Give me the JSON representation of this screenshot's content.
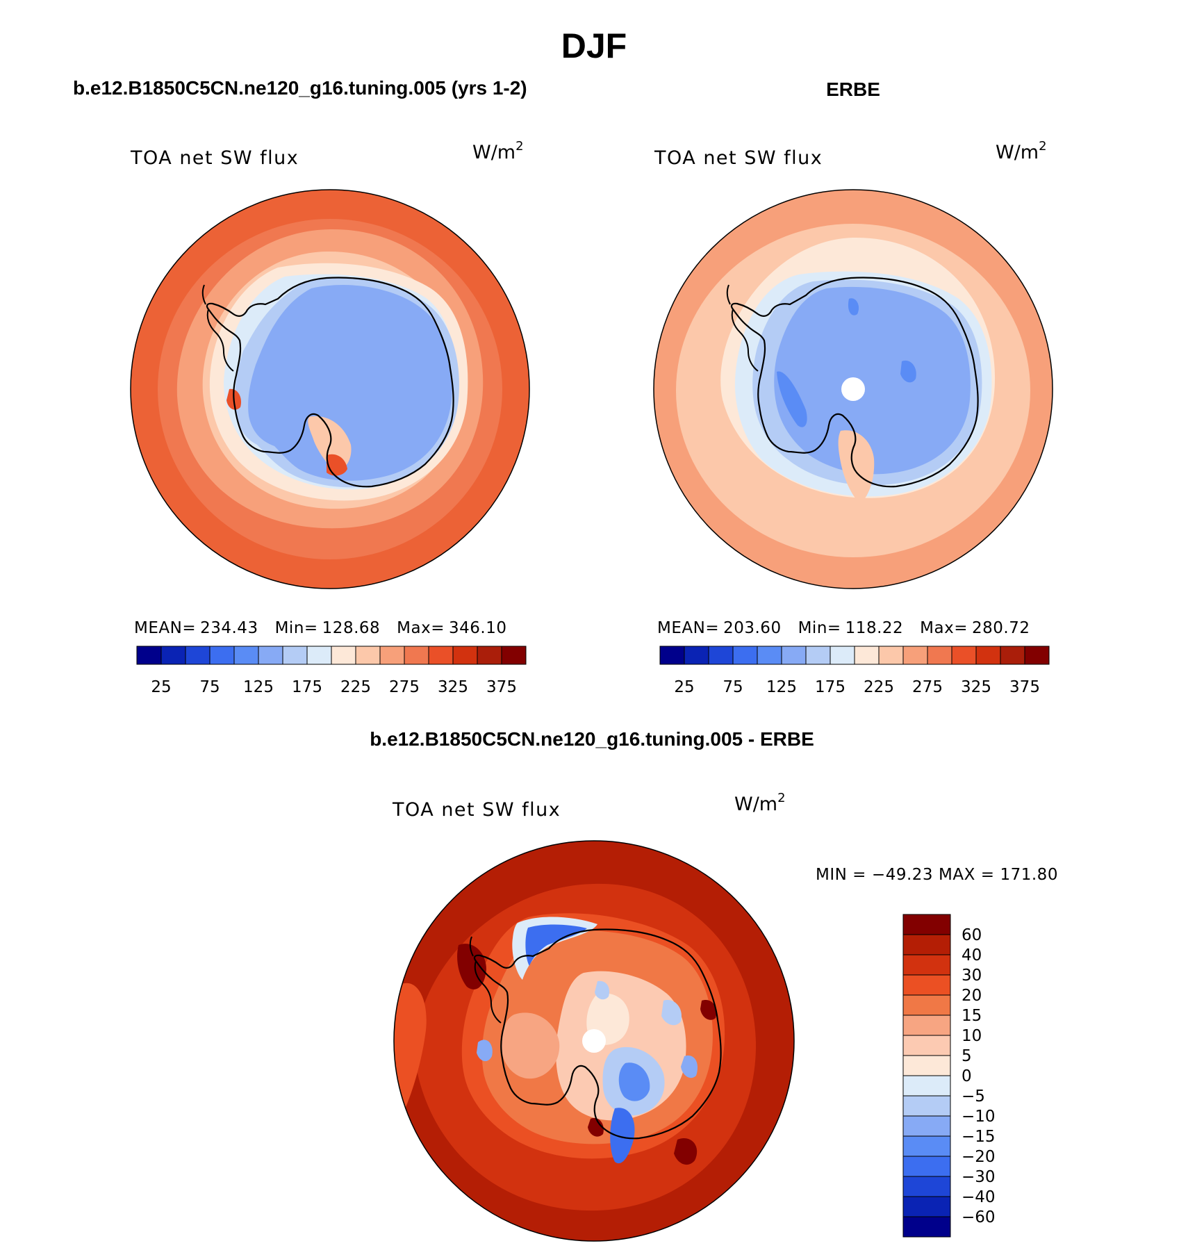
{
  "chart_data": {
    "title": "DJF",
    "panels": [
      {
        "type": "heatmap",
        "projection": "south-polar-stereographic",
        "title": "b.e12.B1850C5CN.ne120_g16.tuning.005 (yrs 1-2)",
        "variable": "TOA net SW flux",
        "units_base": "W/m",
        "units_exp": "2",
        "stats": {
          "mean_label": "MEAN=",
          "mean": "234.43",
          "min_label": "Min=",
          "min": "128.68",
          "max_label": "Max=",
          "max": "346.10"
        },
        "colorbar": {
          "orientation": "horizontal",
          "tick_labels": [
            "25",
            "75",
            "125",
            "175",
            "225",
            "275",
            "325",
            "375"
          ]
        },
        "regions": {
          "ocean_outer": 325,
          "ocean_mid": 275,
          "ocean_inner": 225,
          "sea_ice": 175,
          "continent": 125,
          "peninsula_gap": 325
        }
      },
      {
        "type": "heatmap",
        "projection": "south-polar-stereographic",
        "title": "ERBE",
        "variable": "TOA net SW flux",
        "units_base": "W/m",
        "units_exp": "2",
        "stats": {
          "mean_label": "MEAN=",
          "mean": "203.60",
          "min_label": "Min=",
          "min": "118.22",
          "max_label": "Max=",
          "max": "280.72"
        },
        "colorbar": {
          "orientation": "horizontal",
          "tick_labels": [
            "25",
            "75",
            "125",
            "175",
            "225",
            "275",
            "325",
            "375"
          ]
        },
        "regions": {
          "ocean_outer": 250,
          "ocean_mid": 225,
          "ocean_inner": 200,
          "sea_ice": 175,
          "continent": 125,
          "continent_low": 100
        }
      },
      {
        "type": "heatmap",
        "projection": "south-polar-stereographic",
        "title": "b.e12.B1850C5CN.ne120_g16.tuning.005 - ERBE",
        "variable": "TOA net SW flux",
        "units_base": "W/m",
        "units_exp": "2",
        "stats": {
          "min_label": "MIN =",
          "min": "−49.23",
          "max_label": "MAX =",
          "max": "171.80"
        },
        "colorbar": {
          "orientation": "vertical",
          "tick_labels": [
            "60",
            "40",
            "30",
            "20",
            "15",
            "10",
            "5",
            "0",
            "−5",
            "−10",
            "−15",
            "−20",
            "−30",
            "−40",
            "−60"
          ]
        },
        "regions": {
          "ocean_outer": 60,
          "ocean_mid": 40,
          "coastal_ring": 20,
          "continent_base": 15,
          "continent_cool": -10,
          "blue_patches": -20
        }
      }
    ],
    "palettes": {
      "absolute": [
        "#00008b",
        "#0a23b4",
        "#1e46d7",
        "#3c6ef0",
        "#5a8cf5",
        "#87aaf5",
        "#b4ccf5",
        "#dcebf9",
        "#fde8d8",
        "#fcc8aa",
        "#f7a07a",
        "#f07850",
        "#ea5028",
        "#d2320f",
        "#aa1e0a",
        "#820000"
      ],
      "difference": [
        "#820000",
        "#b41e05",
        "#d2320f",
        "#eb5023",
        "#f07846",
        "#f7a582",
        "#fccab2",
        "#fde8d8",
        "#dcebf9",
        "#b4ccf5",
        "#87aaf5",
        "#5a8cf5",
        "#3c6ef0",
        "#1e46d7",
        "#0a23b4",
        "#00008b"
      ]
    }
  }
}
